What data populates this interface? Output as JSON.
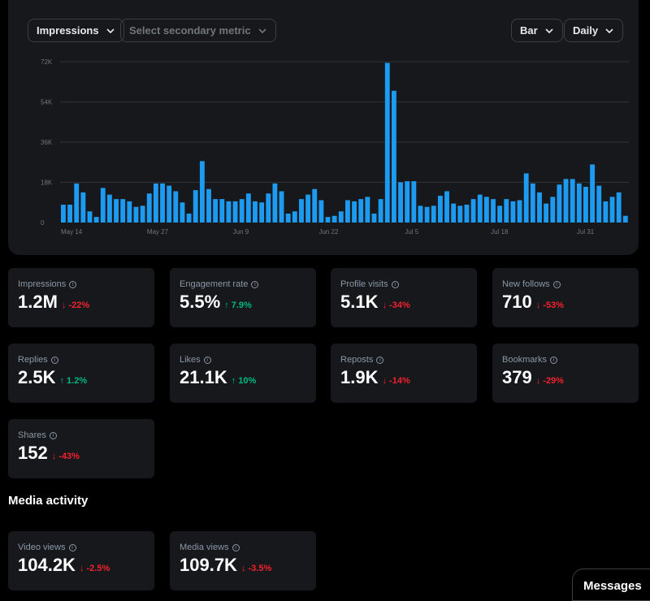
{
  "controls": {
    "primary_metric": "Impressions",
    "secondary_placeholder": "Select secondary metric",
    "chart_type": "Bar",
    "granularity": "Daily"
  },
  "chart_data": {
    "type": "bar",
    "series": [
      {
        "values": [
          8000,
          8000,
          17500,
          13500,
          5000,
          2500,
          15500,
          12500,
          10500,
          10500,
          9500,
          7000,
          7500,
          13000,
          17500,
          17500,
          16500,
          14000,
          9000,
          4000,
          14500,
          27500,
          15000,
          10500,
          10500,
          9500,
          9500,
          10500,
          13000,
          9500,
          9000,
          13000,
          17500,
          14000,
          4000,
          5000,
          10500,
          12500,
          15000,
          10000,
          2500,
          3000,
          5000,
          10000,
          9500,
          10500,
          11500,
          4000,
          10500,
          71500,
          59000,
          18000,
          18500,
          18500,
          7500,
          7000,
          7500,
          12000,
          14000,
          8500,
          7500,
          8000,
          10500,
          12500,
          11500,
          10500,
          7500,
          10500,
          9500,
          10000,
          22000,
          17500,
          13500,
          8500,
          11500,
          17000,
          19500,
          19500,
          17500,
          16000,
          26000,
          16500,
          9500,
          11500,
          13500,
          3000
        ]
      }
    ],
    "x_tick_labels": [
      "May 14",
      "May 27",
      "Jun 9",
      "Jun 22",
      "Jul 5",
      "Jul 18",
      "Jul 31"
    ],
    "y_tick_labels": [
      "0",
      "18K",
      "36K",
      "54K",
      "72K"
    ],
    "ylim": [
      0,
      72000
    ],
    "grid": true,
    "color": "#1d9bf0"
  },
  "metrics": [
    {
      "label": "Impressions",
      "value": "1.2M",
      "arrow": "↓",
      "delta": "-22%",
      "trend": "down"
    },
    {
      "label": "Engagement rate",
      "value": "5.5%",
      "arrow": "↑",
      "delta": "7.9%",
      "trend": "up"
    },
    {
      "label": "Profile visits",
      "value": "5.1K",
      "arrow": "↓",
      "delta": "-34%",
      "trend": "down"
    },
    {
      "label": "New follows",
      "value": "710",
      "arrow": "↓",
      "delta": "-53%",
      "trend": "down"
    },
    {
      "label": "Replies",
      "value": "2.5K",
      "arrow": "↑",
      "delta": "1.2%",
      "trend": "up"
    },
    {
      "label": "Likes",
      "value": "21.1K",
      "arrow": "↑",
      "delta": "10%",
      "trend": "up"
    },
    {
      "label": "Reposts",
      "value": "1.9K",
      "arrow": "↓",
      "delta": "-14%",
      "trend": "down"
    },
    {
      "label": "Bookmarks",
      "value": "379",
      "arrow": "↓",
      "delta": "-29%",
      "trend": "down"
    },
    {
      "label": "Shares",
      "value": "152",
      "arrow": "↓",
      "delta": "-43%",
      "trend": "down"
    }
  ],
  "media_section": {
    "title": "Media activity",
    "metrics": [
      {
        "label": "Video views",
        "value": "104.2K",
        "arrow": "↓",
        "delta": "-2.5%",
        "trend": "down"
      },
      {
        "label": "Media views",
        "value": "109.7K",
        "arrow": "↓",
        "delta": "-3.5%",
        "trend": "down"
      }
    ]
  },
  "messages_label": "Messages",
  "icons": {
    "dropdown": "chevron-down-icon",
    "info": "info-icon"
  }
}
